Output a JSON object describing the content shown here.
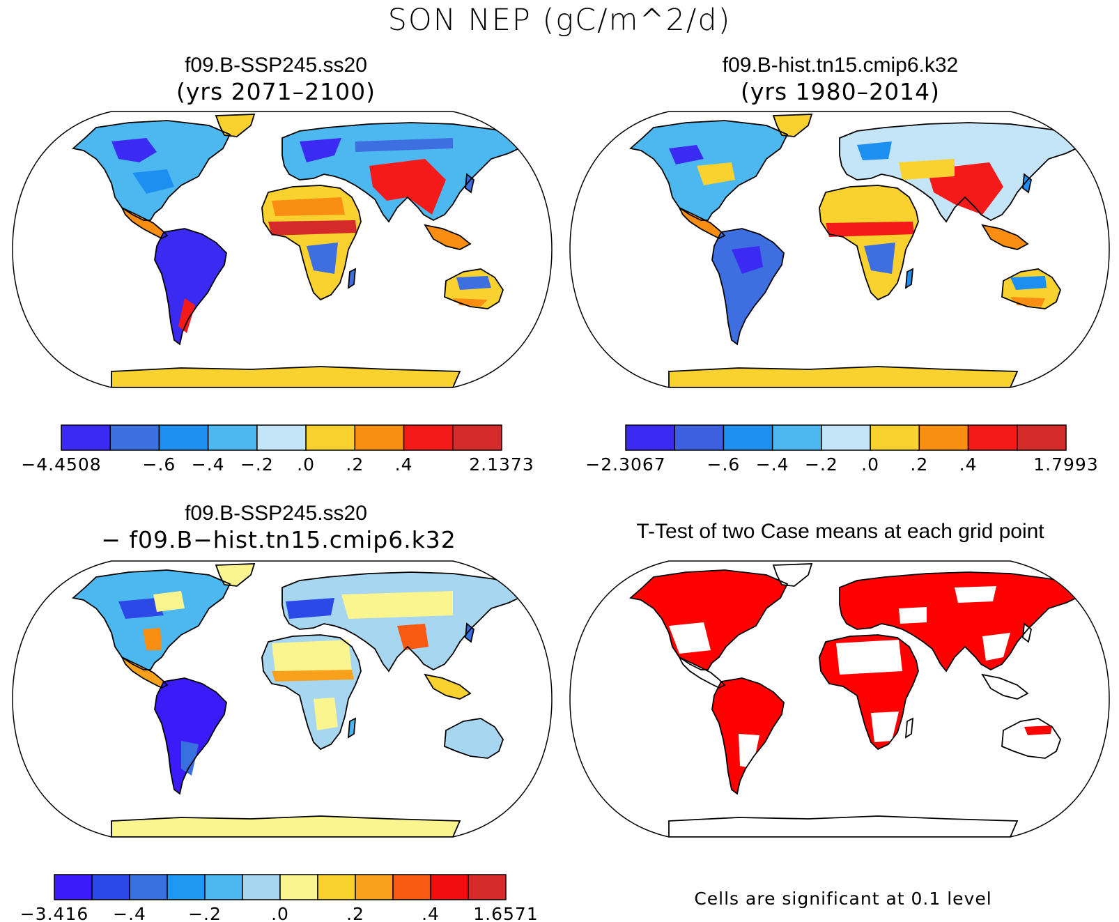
{
  "main_title": "SON NEP (gC/m^2/d)",
  "colors": {
    "land_blue_dark": "#3b2bf2",
    "land_blue": "#3d6fe0",
    "land_blue_mid": "#1c8ff0",
    "land_blue_light": "#4db8ef",
    "land_blue_pale": "#c4e4f7",
    "land_yellow": "#fad22f",
    "land_orange": "#f98e13",
    "land_red": "#f41a1a",
    "land_red_dark": "#d52a2a",
    "pale_yellow": "#fbf58f",
    "sig_red": "#ff0000",
    "outline": "#000000"
  },
  "panels": [
    {
      "id": "ssp245",
      "title": "f09.B-SSP245.ss20",
      "subtitle": "(yrs 2071–2100)",
      "colorbar": {
        "colors": [
          "#3b2bf2",
          "#3d6fe0",
          "#1c8ff0",
          "#4db8ef",
          "#c4e4f7",
          "#fad22f",
          "#f98e13",
          "#f41a1a",
          "#d52a2a"
        ],
        "labels": [
          "−4.4508",
          "−.6",
          "−.4",
          "−.2",
          ".0",
          ".2",
          ".4",
          "2.1373"
        ],
        "label_boundaries": [
          0,
          2,
          3,
          4,
          5,
          6,
          7,
          9
        ]
      }
    },
    {
      "id": "hist",
      "title": "f09.B-hist.tn15.cmip6.k32",
      "subtitle": "(yrs 1980–2014)",
      "colorbar": {
        "colors": [
          "#3b2bf2",
          "#3d5fe0",
          "#1c8ff0",
          "#4db8ef",
          "#c4e4f7",
          "#fad22f",
          "#f98e13",
          "#f41a1a",
          "#d52a2a"
        ],
        "labels": [
          "−2.3067",
          "−.6",
          "−.4",
          "−.2",
          ".0",
          ".2",
          ".4",
          "1.7993"
        ],
        "label_boundaries": [
          0,
          2,
          3,
          4,
          5,
          6,
          7,
          9
        ]
      }
    },
    {
      "id": "diff",
      "title": "f09.B-SSP245.ss20",
      "subtitle": "− f09.B−hist.tn15.cmip6.k32",
      "colorbar": {
        "colors": [
          "#3b1bf7",
          "#2c49e8",
          "#3870e0",
          "#1e98f0",
          "#4db8ef",
          "#a6d6f0",
          "#fbf58f",
          "#fad22f",
          "#f9a11d",
          "#f85a11",
          "#f10d0d",
          "#d52a2a"
        ],
        "labels": [
          "−3.416",
          "−.4",
          "−.2",
          ".0",
          ".2",
          ".4",
          "1.6571"
        ],
        "label_boundaries": [
          0,
          2,
          4,
          6,
          8,
          10,
          12
        ]
      }
    },
    {
      "id": "ttest",
      "title": "T-Test of two Case means at each grid point",
      "note": "Cells are significant at 0.1 level"
    }
  ]
}
